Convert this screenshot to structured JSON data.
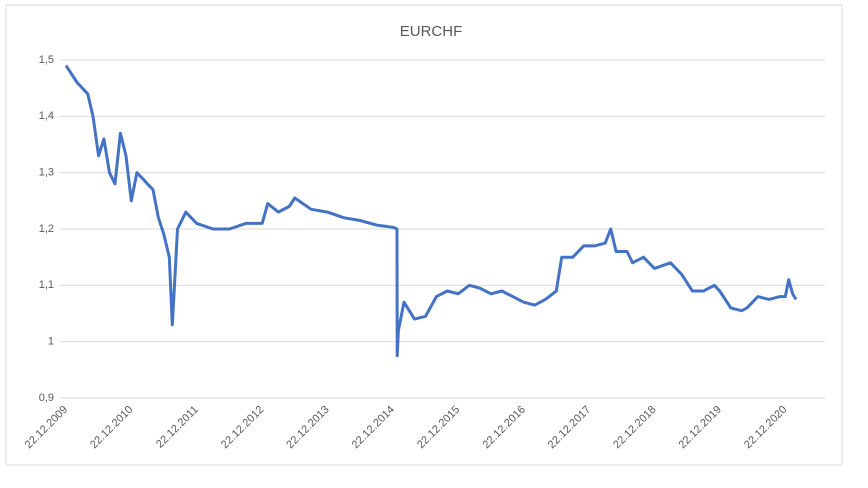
{
  "chart_data": {
    "type": "line",
    "title": "EURCHF",
    "x": [
      "22.12.2009",
      "22.02.2010",
      "22.04.2010",
      "22.05.2010",
      "22.06.2010",
      "22.07.2010",
      "22.08.2010",
      "22.09.2010",
      "22.10.2010",
      "22.11.2010",
      "22.12.2010",
      "22.01.2011",
      "22.02.2011",
      "22.03.2011",
      "22.04.2011",
      "22.05.2011",
      "22.06.2011",
      "22.07.2011",
      "08.08.2011",
      "22.08.2011",
      "06.09.2011",
      "22.10.2011",
      "22.12.2011",
      "22.03.2012",
      "22.06.2012",
      "22.09.2012",
      "22.12.2012",
      "22.01.2013",
      "22.03.2013",
      "22.05.2013",
      "22.06.2013",
      "22.09.2013",
      "22.12.2013",
      "22.03.2014",
      "22.06.2014",
      "22.09.2014",
      "22.12.2014",
      "14.01.2015",
      "15.01.2015",
      "22.01.2015",
      "22.02.2015",
      "22.04.2015",
      "22.06.2015",
      "22.08.2015",
      "22.10.2015",
      "22.12.2015",
      "22.02.2016",
      "22.04.2016",
      "22.06.2016",
      "22.08.2016",
      "22.10.2016",
      "22.12.2016",
      "22.02.2017",
      "22.04.2017",
      "22.06.2017",
      "22.07.2017",
      "22.09.2017",
      "22.11.2017",
      "22.01.2018",
      "22.03.2018",
      "22.04.2018",
      "22.05.2018",
      "22.07.2018",
      "22.08.2018",
      "22.10.2018",
      "22.12.2018",
      "22.03.2019",
      "22.05.2019",
      "22.07.2019",
      "22.09.2019",
      "22.11.2019",
      "22.12.2019",
      "22.02.2020",
      "22.04.2020",
      "22.05.2020",
      "22.07.2020",
      "22.09.2020",
      "22.11.2020",
      "22.12.2020",
      "10.01.2021",
      "01.02.2021",
      "20.02.2021"
    ],
    "series": [
      {
        "name": "EURCHF",
        "color": "#4472c4",
        "values": [
          1.49,
          1.46,
          1.44,
          1.4,
          1.33,
          1.36,
          1.3,
          1.28,
          1.37,
          1.33,
          1.25,
          1.3,
          1.29,
          1.28,
          1.27,
          1.22,
          1.19,
          1.15,
          1.03,
          1.11,
          1.2,
          1.23,
          1.21,
          1.2,
          1.2,
          1.21,
          1.21,
          1.245,
          1.23,
          1.24,
          1.255,
          1.235,
          1.23,
          1.22,
          1.215,
          1.207,
          1.203,
          1.2,
          0.975,
          1.02,
          1.07,
          1.04,
          1.045,
          1.08,
          1.09,
          1.085,
          1.1,
          1.095,
          1.085,
          1.09,
          1.08,
          1.07,
          1.065,
          1.075,
          1.09,
          1.15,
          1.15,
          1.17,
          1.17,
          1.175,
          1.2,
          1.16,
          1.16,
          1.14,
          1.15,
          1.13,
          1.14,
          1.12,
          1.09,
          1.09,
          1.1,
          1.09,
          1.06,
          1.055,
          1.06,
          1.08,
          1.075,
          1.08,
          1.08,
          1.11,
          1.085,
          1.075
        ]
      }
    ],
    "xlim": [
      "22.12.2009",
      "20.02.2021"
    ],
    "xticks": [
      "22.12.2009",
      "22.12.2010",
      "22.12.2011",
      "22.12.2012",
      "22.12.2013",
      "22.12.2014",
      "22.12.2015",
      "22.12.2016",
      "22.12.2017",
      "22.12.2018",
      "22.12.2019",
      "22.12.2020"
    ],
    "ylim": [
      0.9,
      1.5
    ],
    "yticks": [
      {
        "value": 0.9,
        "label": "0,9"
      },
      1,
      {
        "value": 1.1,
        "label": "1,1"
      },
      {
        "value": 1.2,
        "label": "1,2"
      },
      {
        "value": 1.3,
        "label": "1,3"
      },
      {
        "value": 1.4,
        "label": "1,4"
      },
      {
        "value": 1.5,
        "label": "1,5"
      }
    ],
    "grid": true
  }
}
